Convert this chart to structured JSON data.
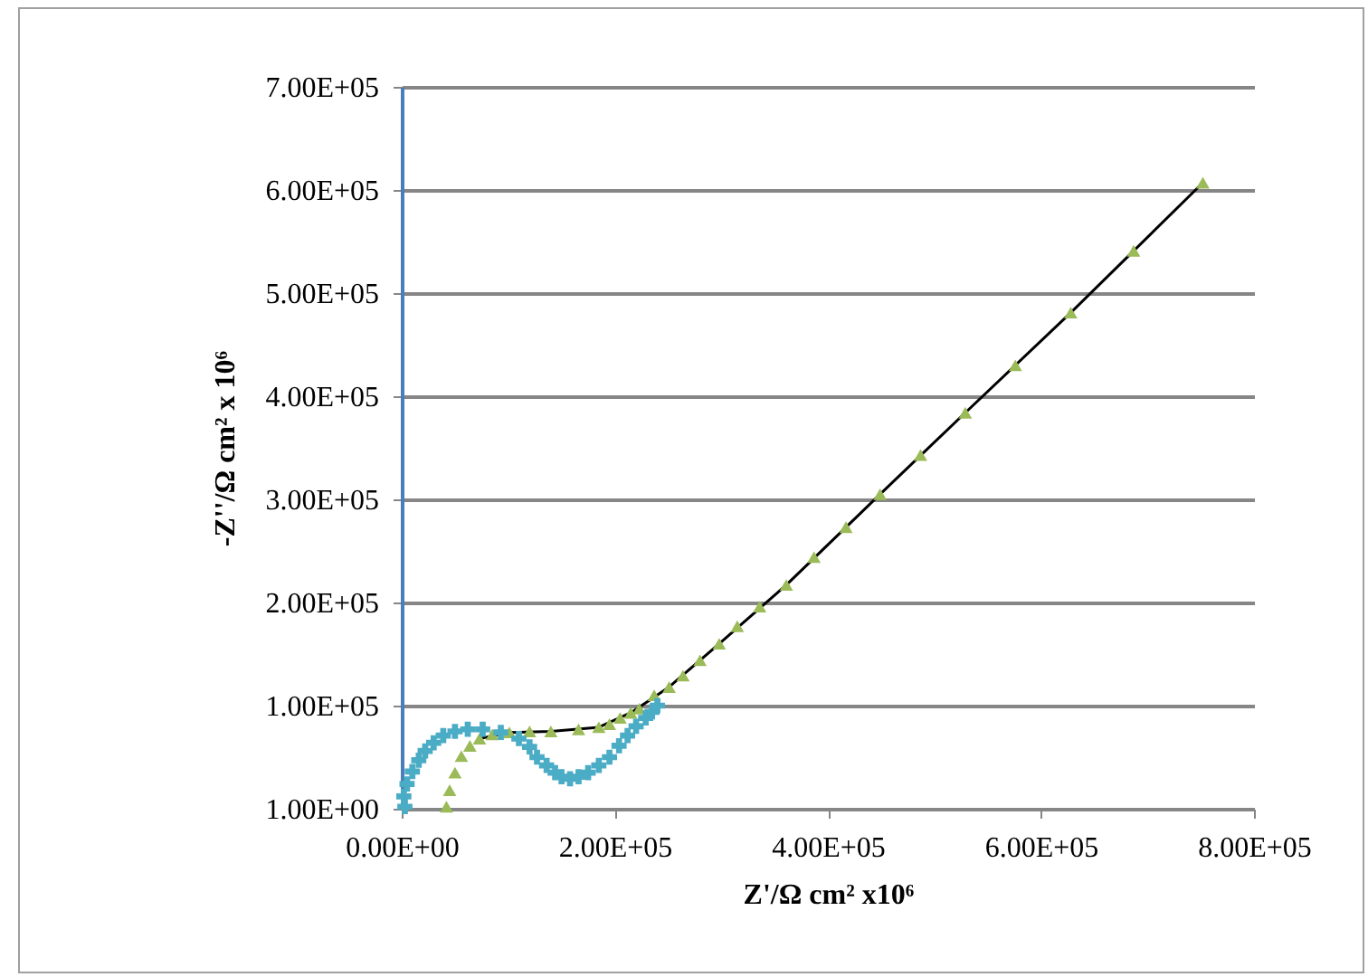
{
  "chart_data": {
    "type": "scatter",
    "xlabel": "Z'/Ω cm² x10⁶",
    "ylabel": "-Z''/Ω cm² x 10⁶",
    "xlim": [
      0,
      800000
    ],
    "ylim": [
      1,
      700000
    ],
    "xticks": [
      {
        "value": 0,
        "label": "0.00E+00"
      },
      {
        "value": 200000,
        "label": "2.00E+05"
      },
      {
        "value": 400000,
        "label": "4.00E+05"
      },
      {
        "value": 600000,
        "label": "6.00E+05"
      },
      {
        "value": 800000,
        "label": "8.00E+05"
      }
    ],
    "yticks": [
      {
        "value": 1,
        "label": "1.00E+00"
      },
      {
        "value": 100000,
        "label": "1.00E+05"
      },
      {
        "value": 200000,
        "label": "2.00E+05"
      },
      {
        "value": 300000,
        "label": "3.00E+05"
      },
      {
        "value": 400000,
        "label": "4.00E+05"
      },
      {
        "value": 500000,
        "label": "5.00E+05"
      },
      {
        "value": 600000,
        "label": "6.00E+05"
      },
      {
        "value": 700000,
        "label": "7.00E+05"
      }
    ],
    "grid": "y",
    "series": [
      {
        "type": "scatter",
        "marker": "triangle",
        "color": "#9bbb59",
        "x": [
          42000,
          45000,
          50000,
          56000,
          64000,
          73000,
          85000,
          101000,
          120000,
          140000,
          166000,
          185000,
          195000,
          205000,
          215000,
          223000,
          237000,
          251000,
          264000,
          280000,
          298000,
          315000,
          336000,
          361000,
          387000,
          417000,
          449000,
          487000,
          529000,
          576000,
          628000,
          687000,
          752000
        ],
        "values": [
          2000,
          18000,
          35000,
          51000,
          61000,
          68000,
          72000,
          74000,
          75000,
          75000,
          77000,
          79000,
          82000,
          88000,
          93000,
          97000,
          110000,
          118000,
          129000,
          144000,
          160000,
          177000,
          196000,
          217000,
          244000,
          273000,
          305000,
          343000,
          384000,
          430000,
          481000,
          541000,
          607000
        ]
      },
      {
        "type": "line",
        "marker": "none",
        "color": "#000000",
        "x": [
          73000,
          101000,
          140000,
          185000,
          215000,
          251000,
          298000,
          361000,
          449000,
          529000,
          628000,
          752000
        ],
        "values": [
          68000,
          74000,
          75000,
          79000,
          93000,
          118000,
          160000,
          217000,
          305000,
          384000,
          481000,
          607000
        ]
      },
      {
        "type": "scatter",
        "marker": "cross",
        "color": "#4bacc6",
        "x": [
          3000,
          2000,
          5000,
          10000,
          16000,
          22000,
          30000,
          39000,
          50000,
          62000,
          76000,
          93000,
          110000,
          120000,
          127000,
          136000,
          144000,
          150000,
          158000,
          166000,
          175000,
          185000,
          195000,
          204000,
          212000,
          220000,
          229000,
          235000,
          240000
        ],
        "values": [
          2000,
          12000,
          24000,
          36000,
          47000,
          56000,
          64000,
          71000,
          75000,
          77000,
          77000,
          74000,
          68000,
          60000,
          50000,
          42000,
          35000,
          31000,
          29000,
          31000,
          35000,
          42000,
          50000,
          61000,
          71000,
          80000,
          88000,
          94000,
          100000
        ]
      }
    ]
  }
}
